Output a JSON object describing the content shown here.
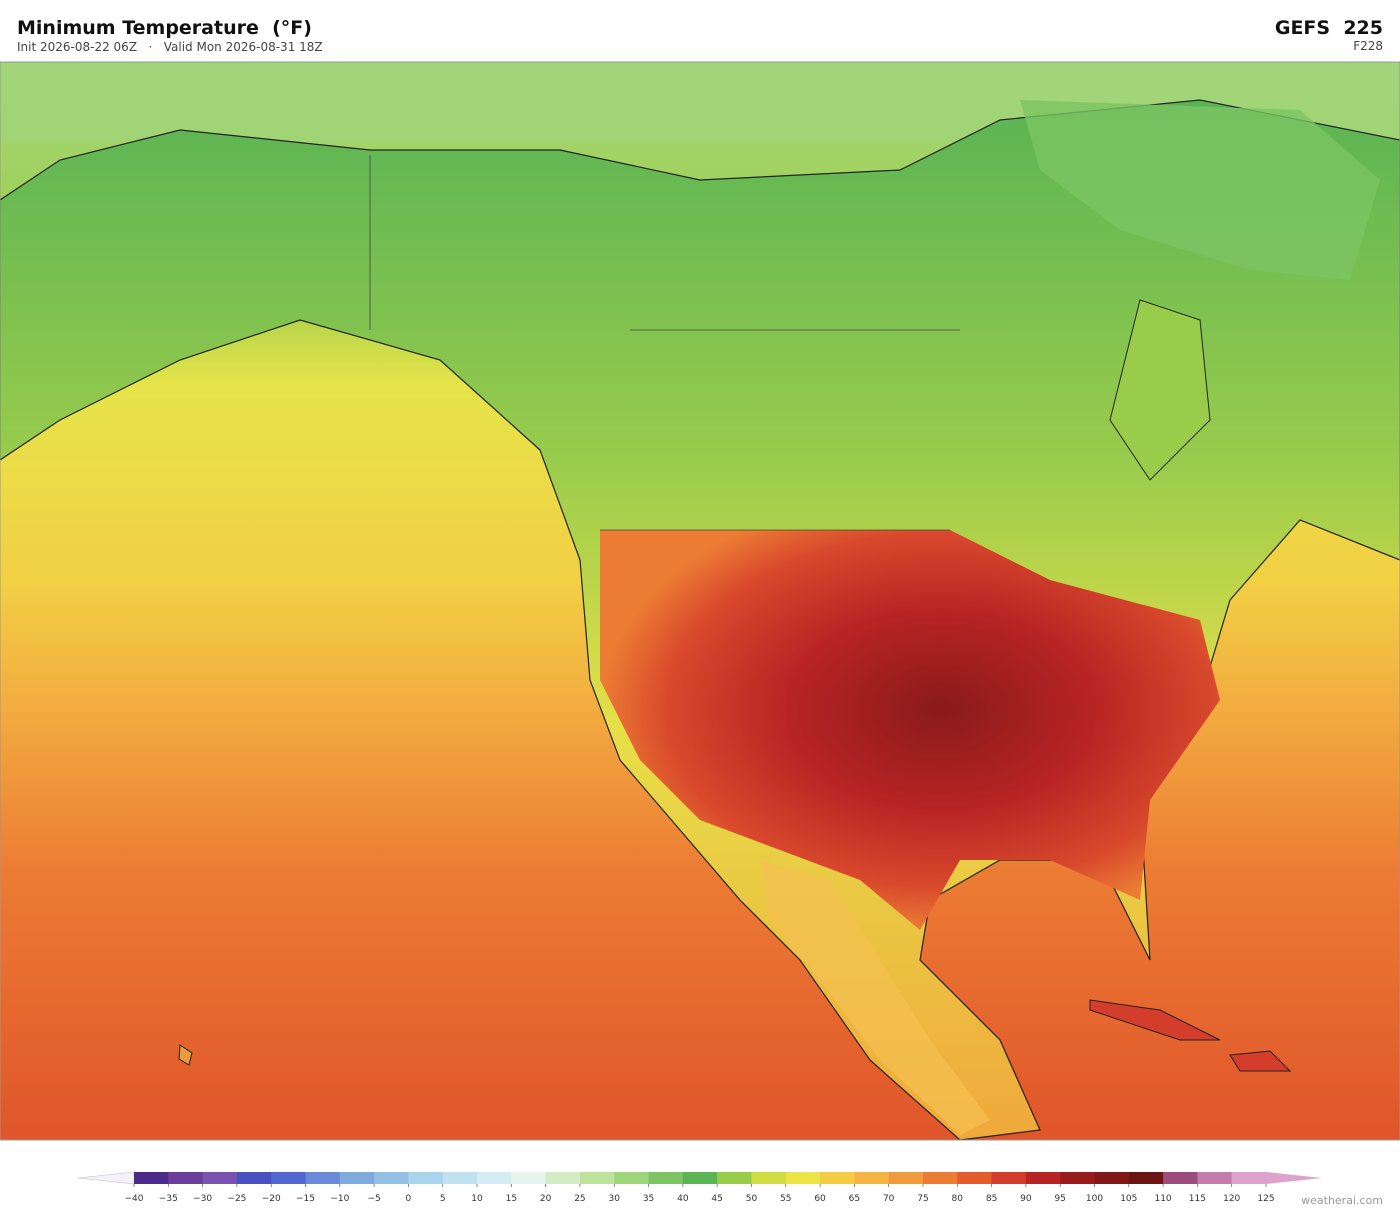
{
  "header": {
    "title": "Minimum Temperature  (°F)",
    "subtitle": "Init 2026-08-22 06Z   ·   Valid Mon 2026-08-31 18Z",
    "model": "GEFS  225",
    "forecast_hour": "F228"
  },
  "colorbar": {
    "ticks": [
      {
        "value": -40,
        "label": "−40"
      },
      {
        "value": -35,
        "label": "−35"
      },
      {
        "value": -30,
        "label": "−30"
      },
      {
        "value": -25,
        "label": "−25"
      },
      {
        "value": -20,
        "label": "−20"
      },
      {
        "value": -15,
        "label": "−15"
      },
      {
        "value": -10,
        "label": "−10"
      },
      {
        "value": -5,
        "label": "−5"
      },
      0,
      5,
      10,
      15,
      20,
      25,
      30,
      35,
      40,
      45,
      50,
      55,
      60,
      65,
      70,
      75,
      80,
      85,
      90,
      95,
      100,
      105,
      110,
      115,
      120,
      125
    ],
    "colors": [
      "#4b2a8c",
      "#6a3d9a",
      "#7a52b0",
      "#4a50c0",
      "#5068d0",
      "#6a8ad8",
      "#7faadc",
      "#93c0e4",
      "#a8d4ec",
      "#c0e2f0",
      "#d6ecf4",
      "#e6f4ec",
      "#d4ecc4",
      "#bce29c",
      "#9ed47c",
      "#7cc464",
      "#5ab454",
      "#9acc4c",
      "#d0dc44",
      "#ece444",
      "#f4cc44",
      "#f4b444",
      "#f09c3c",
      "#ec7c34",
      "#e45c2c",
      "#d43c2c",
      "#b82424",
      "#981c1c",
      "#801818",
      "#6c1414",
      "#9c4c7c",
      "#c47cac",
      "#dca4cc"
    ],
    "under_color": "#f4f2f8",
    "over_color": "#dca4cc"
  },
  "footer": {
    "credit": "weatherai.com"
  }
}
